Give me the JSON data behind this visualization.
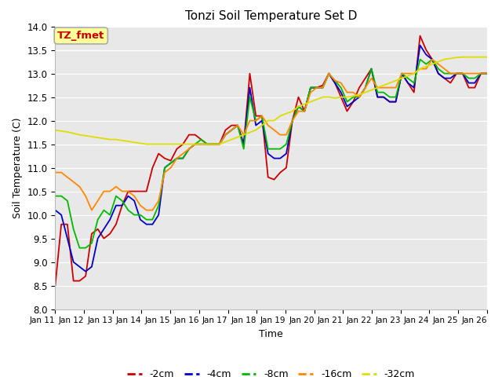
{
  "title": "Tonzi Soil Temperature Set D",
  "xlabel": "Time",
  "ylabel": "Soil Temperature (C)",
  "ylim": [
    8.0,
    14.0
  ],
  "yticks": [
    8.0,
    8.5,
    9.0,
    9.5,
    10.0,
    10.5,
    11.0,
    11.5,
    12.0,
    12.5,
    13.0,
    13.5,
    14.0
  ],
  "xtick_labels": [
    "Jan 11",
    "Jan 12",
    "Jan 13",
    "Jan 14",
    "Jan 15",
    "Jan 16",
    "Jan 17",
    "Jan 18",
    "Jan 19",
    "Jan 20",
    "Jan 21",
    "Jan 22",
    "Jan 23",
    "Jan 24",
    "Jan 25",
    "Jan 26"
  ],
  "bg_color": "#e8e8e8",
  "fig_bg": "#ffffff",
  "legend_label": "TZ_fmet",
  "legend_bg": "#ffff99",
  "legend_border": "#aaaaaa",
  "series": {
    "-2cm": {
      "color": "#cc0000",
      "data": [
        8.5,
        9.8,
        9.8,
        8.6,
        8.6,
        8.7,
        9.6,
        9.7,
        9.5,
        9.6,
        9.8,
        10.2,
        10.5,
        10.5,
        10.5,
        10.5,
        11.0,
        11.3,
        11.2,
        11.15,
        11.4,
        11.5,
        11.7,
        11.7,
        11.6,
        11.5,
        11.5,
        11.5,
        11.8,
        11.9,
        11.9,
        11.5,
        13.0,
        12.1,
        12.1,
        10.8,
        10.75,
        10.9,
        11.0,
        12.0,
        12.5,
        12.2,
        12.7,
        12.7,
        12.75,
        13.0,
        12.8,
        12.5,
        12.2,
        12.4,
        12.7,
        12.9,
        13.1,
        12.5,
        12.5,
        12.4,
        12.4,
        13.0,
        12.8,
        12.6,
        13.8,
        13.5,
        13.3,
        13.0,
        12.9,
        12.8,
        13.0,
        13.0,
        12.7,
        12.7,
        13.0,
        13.0
      ]
    },
    "-4cm": {
      "color": "#0000cc",
      "data": [
        10.1,
        10.0,
        9.5,
        9.0,
        8.9,
        8.8,
        8.9,
        9.5,
        9.7,
        9.9,
        10.2,
        10.2,
        10.4,
        10.3,
        9.9,
        9.8,
        9.8,
        10.0,
        11.0,
        11.1,
        11.2,
        11.2,
        11.4,
        11.5,
        11.5,
        11.5,
        11.5,
        11.5,
        11.7,
        11.8,
        11.9,
        11.5,
        12.7,
        11.9,
        12.0,
        11.3,
        11.2,
        11.2,
        11.3,
        12.0,
        12.3,
        12.2,
        12.7,
        12.7,
        12.7,
        13.0,
        12.8,
        12.6,
        12.3,
        12.4,
        12.5,
        12.7,
        13.1,
        12.5,
        12.5,
        12.4,
        12.4,
        13.0,
        12.8,
        12.7,
        13.6,
        13.4,
        13.3,
        13.0,
        12.9,
        12.9,
        13.0,
        13.0,
        12.8,
        12.8,
        13.0,
        13.0
      ]
    },
    "-8cm": {
      "color": "#00bb00",
      "data": [
        10.4,
        10.4,
        10.3,
        9.7,
        9.3,
        9.3,
        9.4,
        9.9,
        10.1,
        10.0,
        10.4,
        10.3,
        10.1,
        10.0,
        10.0,
        9.9,
        9.9,
        10.2,
        11.0,
        11.1,
        11.2,
        11.2,
        11.4,
        11.5,
        11.6,
        11.5,
        11.5,
        11.5,
        11.7,
        11.8,
        11.9,
        11.4,
        12.5,
        12.0,
        12.1,
        11.4,
        11.4,
        11.4,
        11.5,
        12.0,
        12.3,
        12.2,
        12.7,
        12.7,
        12.7,
        13.0,
        12.85,
        12.7,
        12.4,
        12.5,
        12.5,
        12.7,
        13.1,
        12.6,
        12.6,
        12.5,
        12.5,
        13.0,
        12.9,
        12.8,
        13.3,
        13.2,
        13.3,
        13.1,
        13.0,
        13.0,
        13.0,
        13.0,
        12.9,
        12.9,
        13.0,
        13.0
      ]
    },
    "-16cm": {
      "color": "#ff8800",
      "data": [
        10.9,
        10.9,
        10.8,
        10.7,
        10.6,
        10.4,
        10.1,
        10.3,
        10.5,
        10.5,
        10.6,
        10.5,
        10.5,
        10.4,
        10.2,
        10.1,
        10.1,
        10.3,
        10.9,
        11.0,
        11.2,
        11.3,
        11.4,
        11.5,
        11.5,
        11.5,
        11.5,
        11.5,
        11.7,
        11.8,
        11.9,
        11.7,
        12.0,
        12.0,
        12.1,
        11.9,
        11.8,
        11.7,
        11.7,
        12.0,
        12.2,
        12.2,
        12.6,
        12.7,
        12.7,
        13.0,
        12.85,
        12.8,
        12.6,
        12.6,
        12.5,
        12.7,
        12.9,
        12.7,
        12.7,
        12.7,
        12.7,
        13.0,
        13.0,
        13.0,
        13.1,
        13.1,
        13.3,
        13.2,
        13.1,
        13.0,
        13.0,
        13.0,
        13.0,
        13.0,
        13.0,
        13.0
      ]
    },
    "-32cm": {
      "color": "#dddd00",
      "data": [
        11.8,
        11.78,
        11.76,
        11.73,
        11.7,
        11.68,
        11.66,
        11.64,
        11.62,
        11.6,
        11.6,
        11.58,
        11.56,
        11.54,
        11.52,
        11.5,
        11.5,
        11.5,
        11.5,
        11.5,
        11.5,
        11.5,
        11.5,
        11.5,
        11.5,
        11.5,
        11.5,
        11.5,
        11.55,
        11.6,
        11.65,
        11.7,
        11.75,
        11.8,
        11.9,
        12.0,
        12.0,
        12.1,
        12.15,
        12.2,
        12.3,
        12.35,
        12.4,
        12.45,
        12.5,
        12.5,
        12.48,
        12.5,
        12.5,
        12.52,
        12.55,
        12.6,
        12.65,
        12.7,
        12.75,
        12.8,
        12.85,
        12.9,
        12.95,
        13.0,
        13.1,
        13.15,
        13.2,
        13.25,
        13.3,
        13.32,
        13.34,
        13.35,
        13.35,
        13.35,
        13.35,
        13.35
      ]
    }
  }
}
